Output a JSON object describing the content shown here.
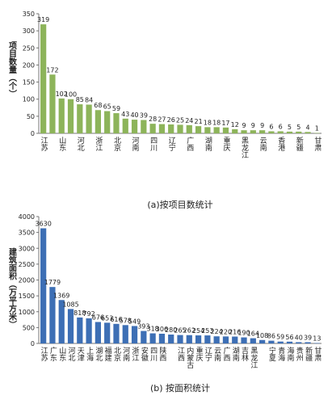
{
  "chart_data": [
    {
      "type": "bar",
      "title": "(a)按项目数统计",
      "y_label": "项目数量（个）",
      "color": "#8db45a",
      "categories": [
        "江苏",
        null,
        "山东",
        null,
        "河北",
        null,
        "浙江",
        null,
        "北京",
        null,
        "河南",
        null,
        "四川",
        null,
        "辽宁",
        null,
        "广西",
        null,
        "湖南",
        null,
        "重庆",
        null,
        "黑龙江",
        null,
        "云南",
        null,
        "香港",
        null,
        "新疆",
        null,
        "甘肃"
      ],
      "values": [
        319,
        172,
        102,
        100,
        85,
        84,
        68,
        65,
        59,
        43,
        40,
        39,
        28,
        27,
        26,
        25,
        24,
        21,
        18,
        18,
        17,
        12,
        9,
        9,
        9,
        6,
        6,
        5,
        5,
        4,
        1
      ],
      "ylim": [
        0,
        350
      ],
      "yticks": [
        0,
        50,
        100,
        150,
        200,
        250,
        300,
        350
      ]
    },
    {
      "type": "bar",
      "title": "(b) 按面积统计",
      "y_label": "建筑面积（万平方米）",
      "color": "#3d6fb5",
      "categories": [
        "江苏",
        "广东",
        "山东",
        "河北",
        "天津",
        "上海",
        "湖北",
        "福建",
        "北京",
        "河南",
        "浙江",
        "安徽",
        "四川",
        "陕西",
        null,
        "江西",
        "内蒙古",
        "重庆",
        "辽宁",
        "云南",
        "广西",
        "湖南",
        "吉林",
        "黑龙江",
        null,
        "宁夏",
        "青海",
        "海南",
        "贵州",
        "新疆",
        "甘肃"
      ],
      "values": [
        3630,
        1779,
        1369,
        1085,
        818,
        792,
        676,
        653,
        616,
        578,
        549,
        393,
        318,
        306,
        280,
        265,
        262,
        254,
        253,
        224,
        220,
        216,
        190,
        164,
        108,
        86,
        59,
        56,
        40,
        39,
        13
      ],
      "ylim": [
        0,
        4000
      ],
      "yticks": [
        0,
        500,
        1000,
        1500,
        2000,
        2500,
        3000,
        3500,
        4000
      ]
    }
  ]
}
